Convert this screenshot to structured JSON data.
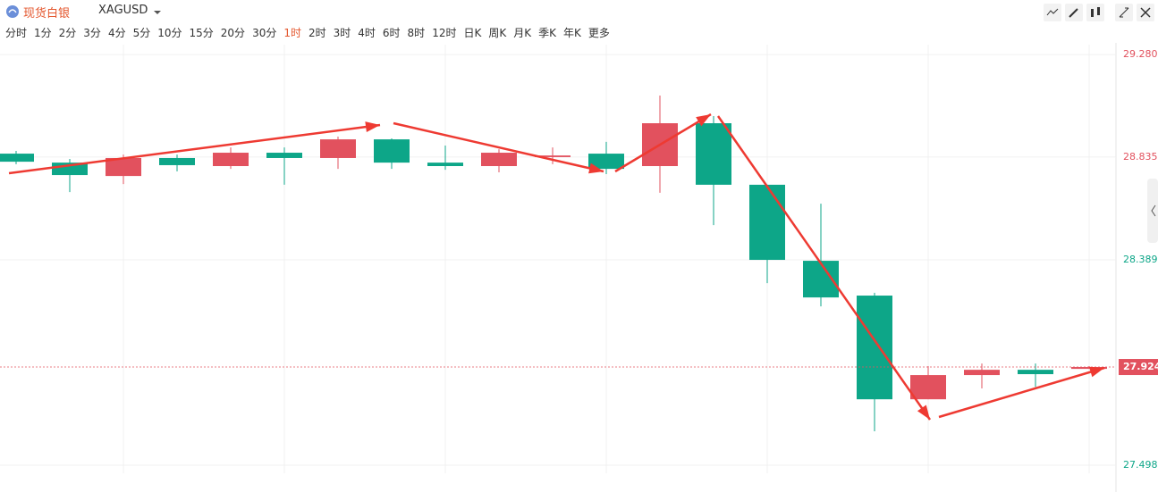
{
  "header": {
    "symbol_name": "现货白银",
    "symbol_code": "XAGUSD",
    "timeframes": [
      "分时",
      "1分",
      "2分",
      "3分",
      "4分",
      "5分",
      "10分",
      "15分",
      "20分",
      "30分",
      "1时",
      "2时",
      "3时",
      "4时",
      "6时",
      "8时",
      "12时",
      "日K",
      "周K",
      "月K",
      "季K",
      "年K",
      "更多"
    ],
    "active_timeframe": 10
  },
  "chart_data": {
    "type": "candlestick",
    "open": [
      28.85,
      28.811,
      28.753,
      28.831,
      28.796,
      28.854,
      28.831,
      28.912,
      28.811,
      28.796,
      28.835,
      28.85,
      28.796,
      28.982,
      28.715,
      28.385,
      28.234,
      27.784,
      27.889,
      27.912,
      27.916
    ],
    "high": [
      28.862,
      28.827,
      28.846,
      28.846,
      28.877,
      28.877,
      28.924,
      28.916,
      28.885,
      28.869,
      28.877,
      28.901,
      29.102,
      29.013,
      28.715,
      28.633,
      28.246,
      27.928,
      27.939,
      27.939,
      27.928
    ],
    "low": [
      28.804,
      28.683,
      28.718,
      28.773,
      28.784,
      28.715,
      28.784,
      28.784,
      28.78,
      28.769,
      28.804,
      28.761,
      28.68,
      28.54,
      28.288,
      28.187,
      27.645,
      27.784,
      27.831,
      27.838,
      27.916
    ],
    "close": [
      28.815,
      28.757,
      28.831,
      28.8,
      28.854,
      28.831,
      28.912,
      28.811,
      28.796,
      28.854,
      28.842,
      28.784,
      28.982,
      28.715,
      28.389,
      28.226,
      27.784,
      27.889,
      27.912,
      27.893,
      27.924
    ],
    "up_color": "#e2515e",
    "down_color": "#0da688",
    "ylim": [
      27.463,
      29.323
    ],
    "yticks": [
      {
        "value": 29.28,
        "label": "29.280"
      },
      28.835,
      28.389,
      27.498
    ],
    "ytick_colors": [
      "#e2515e",
      "#e2515e",
      "#0da688",
      "#0da688"
    ],
    "last_price": 27.924,
    "grid": true
  }
}
